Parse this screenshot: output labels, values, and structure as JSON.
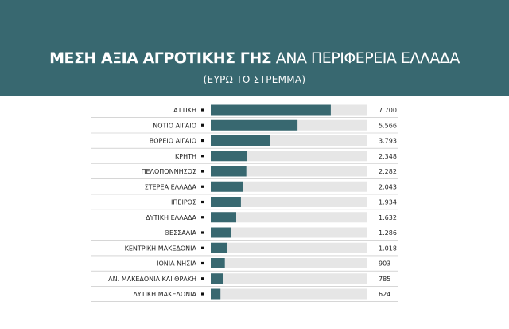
{
  "chart_data": {
    "type": "bar",
    "orientation": "horizontal",
    "title_bold": "ΜΕΣΗ ΑΞΙΑ ΑΓΡΟΤΙΚΗΣ ΓΗΣ",
    "title_rest": "ΑΝΑ ΠΕΡΙΦΕΡΕΙΑ ΕΛΛΑΔΑ",
    "subtitle": "(ΕΥΡΩ ΤΟ ΣΤΡΕΜΜΑ)",
    "categories": [
      "ΑΤΤΙΚΗ",
      "ΝΟΤΙΟ ΑΙΓΑΙΟ",
      "ΒΟΡΕΙΟ ΑΙΓΑΙΟ",
      "ΚΡΗΤΗ",
      "ΠΕΛΟΠΟΝΝΗΣΟΣ",
      "ΣΤΕΡΕΑ ΕΛΛΑΔΑ",
      "ΗΠΕΙΡΟΣ",
      "ΔΥΤΙΚΗ ΕΛΛΑΔΑ",
      "ΘΕΣΣΑΛΙΑ",
      "ΚΕΝΤΡΙΚΗ ΜΑΚΕΔΟΝΙΑ",
      "ΙΟΝΙΑ ΝΗΣΙΑ",
      "ΑΝ. ΜΑΚΕΔΟΝΙΑ ΚΑΙ ΘΡΑΚΗ",
      "ΔΥΤΙΚΗ ΜΑΚΕΔΟΝΙΑ"
    ],
    "values": [
      7700,
      5566,
      3793,
      2348,
      2282,
      2043,
      1934,
      1632,
      1286,
      1018,
      903,
      785,
      624
    ],
    "value_labels": [
      "7.700",
      "5.566",
      "3.793",
      "2.348",
      "2.282",
      "2.043",
      "1.934",
      "1.632",
      "1.286",
      "1.018",
      "903",
      "785",
      "624"
    ],
    "xlim": [
      0,
      10000
    ],
    "grid": false,
    "legend": "none",
    "colors": {
      "header_bg": "#386870",
      "bar": "#386870",
      "track": "#e6e6e6",
      "separator": "#bdbdbd",
      "text": "#222222"
    }
  }
}
